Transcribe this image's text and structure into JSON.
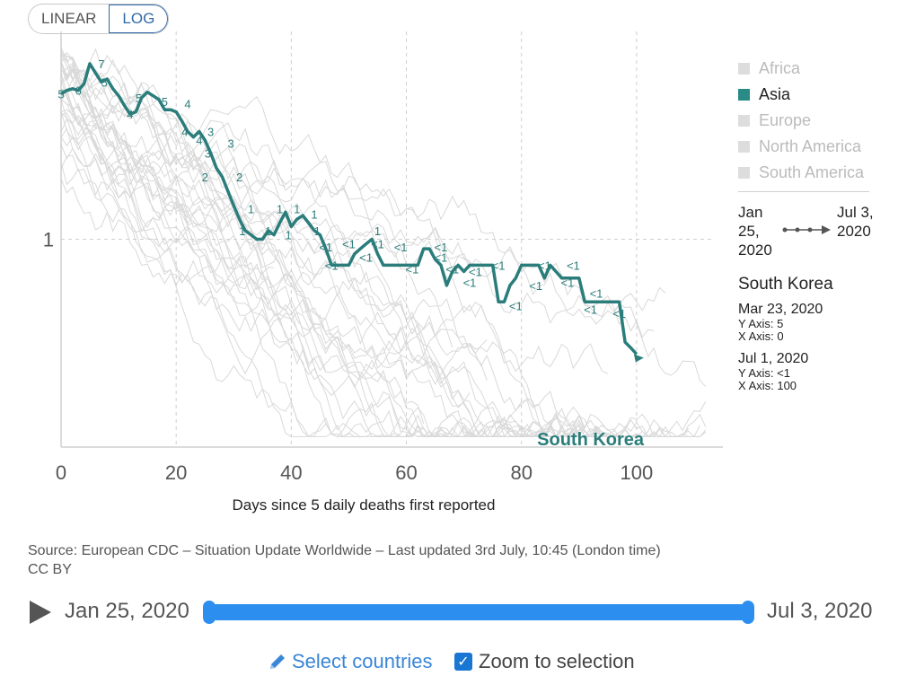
{
  "toggle": {
    "linear_label": "LINEAR",
    "log_label": "LOG",
    "active": "LOG"
  },
  "chart_data": {
    "type": "line",
    "xlabel": "Days since 5 daily deaths first reported",
    "ylabel": "",
    "y_scale": "log",
    "xlim": [
      0,
      115
    ],
    "ylim": [
      0.1,
      10
    ],
    "x_ticks": [
      0,
      20,
      40,
      60,
      80,
      100
    ],
    "y_ticks": [
      1
    ],
    "y_tick_labels": [
      "1"
    ],
    "grid": true,
    "highlight_label": "South Korea",
    "series": [
      {
        "name": "South Korea",
        "color": "#2a7d7b",
        "x": [
          0,
          1,
          2,
          3,
          4,
          5,
          6,
          7,
          8,
          9,
          10,
          11,
          12,
          13,
          14,
          15,
          16,
          17,
          18,
          19,
          20,
          21,
          22,
          23,
          24,
          25,
          26,
          27,
          28,
          29,
          30,
          31,
          32,
          33,
          34,
          35,
          36,
          37,
          38,
          39,
          40,
          41,
          42,
          43,
          44,
          45,
          46,
          47,
          48,
          49,
          50,
          51,
          52,
          53,
          54,
          55,
          56,
          57,
          58,
          59,
          60,
          61,
          62,
          63,
          64,
          65,
          66,
          67,
          68,
          69,
          70,
          71,
          72,
          73,
          74,
          75,
          76,
          77,
          78,
          79,
          80,
          81,
          82,
          83,
          84,
          85,
          86,
          87,
          88,
          89,
          90,
          91,
          92,
          93,
          94,
          95,
          96,
          97,
          98,
          99,
          100
        ],
        "y": [
          5,
          5.2,
          5.3,
          5.2,
          5.6,
          7,
          6.3,
          5.7,
          5.9,
          5.3,
          4.9,
          4.4,
          4,
          4.1,
          4.8,
          5.1,
          4.9,
          4.7,
          4.2,
          4.2,
          4.1,
          3.7,
          3.3,
          3.1,
          3.3,
          3,
          2.6,
          2.2,
          2,
          1.7,
          1.45,
          1.25,
          1.1,
          1.05,
          1,
          1,
          1.1,
          1.05,
          1.2,
          1.35,
          1.15,
          1.25,
          1.3,
          1.2,
          1.1,
          1.05,
          0.9,
          0.75,
          0.75,
          0.75,
          0.75,
          0.85,
          0.9,
          0.95,
          1,
          0.85,
          0.75,
          0.75,
          0.75,
          0.75,
          0.75,
          0.75,
          0.75,
          0.9,
          0.9,
          0.8,
          0.75,
          0.6,
          0.7,
          0.75,
          0.7,
          0.75,
          0.75,
          0.75,
          0.75,
          0.75,
          0.5,
          0.5,
          0.6,
          0.65,
          0.75,
          0.75,
          0.75,
          0.75,
          0.65,
          0.75,
          0.7,
          0.65,
          0.65,
          0.65,
          0.65,
          0.5,
          0.5,
          0.5,
          0.5,
          0.5,
          0.5,
          0.5,
          0.32,
          0.3,
          0.28
        ]
      }
    ],
    "point_labels": [
      {
        "x": 0,
        "y": 5,
        "text": "5"
      },
      {
        "x": 3,
        "y": 5.2,
        "text": "6"
      },
      {
        "x": 7,
        "y": 7,
        "text": "7"
      },
      {
        "x": 7.5,
        "y": 5.7,
        "text": "5"
      },
      {
        "x": 12,
        "y": 4,
        "text": "4"
      },
      {
        "x": 13.5,
        "y": 4.8,
        "text": "5"
      },
      {
        "x": 18,
        "y": 4.6,
        "text": "5"
      },
      {
        "x": 22,
        "y": 4.5,
        "text": "4"
      },
      {
        "x": 21.5,
        "y": 3.3,
        "text": "4"
      },
      {
        "x": 26,
        "y": 3.3,
        "text": "3"
      },
      {
        "x": 24,
        "y": 3,
        "text": "4"
      },
      {
        "x": 29.5,
        "y": 2.9,
        "text": "3"
      },
      {
        "x": 25.5,
        "y": 2.6,
        "text": "3"
      },
      {
        "x": 25,
        "y": 2,
        "text": "2"
      },
      {
        "x": 31,
        "y": 2,
        "text": "2"
      },
      {
        "x": 33,
        "y": 1.4,
        "text": "1"
      },
      {
        "x": 31.5,
        "y": 1.1,
        "text": "1"
      },
      {
        "x": 36,
        "y": 1.1,
        "text": "1"
      },
      {
        "x": 38,
        "y": 1.4,
        "text": "1"
      },
      {
        "x": 41,
        "y": 1.4,
        "text": "1"
      },
      {
        "x": 39.5,
        "y": 1.05,
        "text": "1"
      },
      {
        "x": 44,
        "y": 1.32,
        "text": "1"
      },
      {
        "x": 44.5,
        "y": 1.1,
        "text": "1"
      },
      {
        "x": 55,
        "y": 1.1,
        "text": "1"
      },
      {
        "x": 46,
        "y": 0.92,
        "text": "<1"
      },
      {
        "x": 50,
        "y": 0.95,
        "text": "<1"
      },
      {
        "x": 55,
        "y": 0.95,
        "text": "<1"
      },
      {
        "x": 47,
        "y": 0.75,
        "text": "<1"
      },
      {
        "x": 53,
        "y": 0.82,
        "text": "<1"
      },
      {
        "x": 59,
        "y": 0.92,
        "text": "<1"
      },
      {
        "x": 66,
        "y": 0.92,
        "text": "<1"
      },
      {
        "x": 61,
        "y": 0.72,
        "text": "<1"
      },
      {
        "x": 66,
        "y": 0.82,
        "text": "<1"
      },
      {
        "x": 68,
        "y": 0.72,
        "text": "<1"
      },
      {
        "x": 71,
        "y": 0.62,
        "text": "<1"
      },
      {
        "x": 76,
        "y": 0.75,
        "text": "<1"
      },
      {
        "x": 72,
        "y": 0.7,
        "text": "<1"
      },
      {
        "x": 79,
        "y": 0.48,
        "text": "<1"
      },
      {
        "x": 84,
        "y": 0.75,
        "text": "<1"
      },
      {
        "x": 82.5,
        "y": 0.6,
        "text": "<1"
      },
      {
        "x": 89,
        "y": 0.75,
        "text": "<1"
      },
      {
        "x": 88,
        "y": 0.62,
        "text": "<1"
      },
      {
        "x": 93,
        "y": 0.55,
        "text": "<1"
      },
      {
        "x": 92,
        "y": 0.46,
        "text": "<1"
      },
      {
        "x": 97,
        "y": 0.44,
        "text": "<1"
      }
    ]
  },
  "legend": {
    "items": [
      {
        "label": "Africa",
        "active": false
      },
      {
        "label": "Asia",
        "active": true
      },
      {
        "label": "Europe",
        "active": false
      },
      {
        "label": "North America",
        "active": false
      },
      {
        "label": "South America",
        "active": false
      }
    ],
    "range_start": "Jan 25, 2020",
    "range_end": "Jul 3, 2020"
  },
  "hover": {
    "country": "South Korea",
    "points": [
      {
        "date": "Mar 23, 2020",
        "y_text": "Y Axis: 5",
        "x_text": "X Axis: 0"
      },
      {
        "date": "Jul 1, 2020",
        "y_text": "Y Axis: <1",
        "x_text": "X Axis: 100"
      }
    ]
  },
  "source": {
    "line1": "Source: European CDC – Situation Update Worldwide – Last updated 3rd July, 10:45 (London time)",
    "line2": "CC BY"
  },
  "timeline": {
    "start": "Jan 25, 2020",
    "end": "Jul 3, 2020"
  },
  "controls": {
    "select_label": "Select countries",
    "zoom_label": "Zoom to selection",
    "zoom_checked": true
  },
  "colors": {
    "accent": "#2a7d7b",
    "slider": "#2c8ff0",
    "link": "#3a86d8"
  }
}
